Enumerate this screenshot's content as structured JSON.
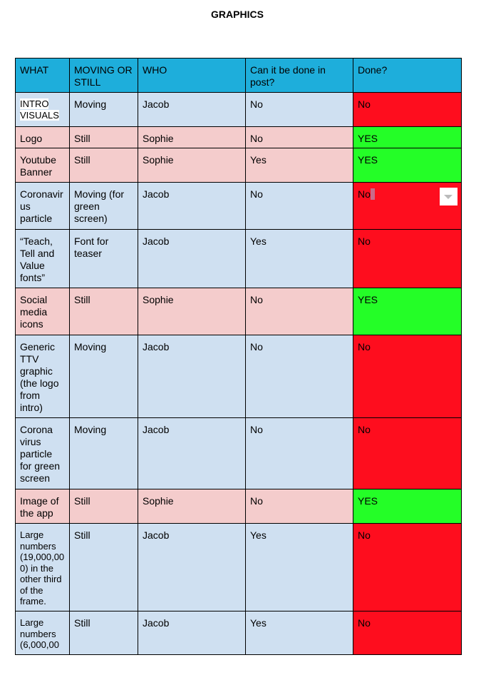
{
  "title": "GRAPHICS",
  "headers": [
    "WHAT",
    "MOVING OR STILL",
    "WHO",
    "Can it be done in post?",
    "Done?"
  ],
  "rows": [
    {
      "what": "INTRO VISUALS",
      "moving": "Moving",
      "who": "Jacob",
      "post": "No",
      "done": "No"
    },
    {
      "what": "Logo",
      "moving": "Still",
      "who": "Sophie",
      "post": "No",
      "done": "YES"
    },
    {
      "what": "Youtube Banner",
      "moving": "Still",
      "who": "Sophie",
      "post": "Yes",
      "done": "YES"
    },
    {
      "what": "Coronavirus particle",
      "moving": "Moving (for green screen)",
      "who": "Jacob",
      "post": "No",
      "done": "No"
    },
    {
      "what": "“Teach, Tell and Value fonts”",
      "moving": "Font for teaser",
      "who": "Jacob",
      "post": "Yes",
      "done": "No"
    },
    {
      "what": "Social media icons",
      "moving": "Still",
      "who": "Sophie",
      "post": "No",
      "done": "YES"
    },
    {
      "what": "Generic TTV graphic (the logo from intro)",
      "moving": "Moving",
      "who": "Jacob",
      "post": "No",
      "done": "No"
    },
    {
      "what": "Corona virus particle for green screen",
      "moving": "Moving",
      "who": "Jacob",
      "post": "No",
      "done": "No"
    },
    {
      "what": "Image of the app",
      "moving": "Still",
      "who": "Sophie",
      "post": "No",
      "done": "YES"
    },
    {
      "what": "Large numbers (19,000,000) in the other third of the frame.",
      "moving": "Still",
      "who": "Jacob",
      "post": "Yes",
      "done": "No"
    },
    {
      "what": "Large numbers (6,000,00",
      "moving": "Still",
      "who": "Jacob",
      "post": "Yes",
      "done": "No"
    }
  ],
  "colors": {
    "header": "#1eaedb",
    "blue_row": "#cfe0f1",
    "pink_row": "#f4cccc",
    "no": "#fe0d1e",
    "yes": "#24fe27"
  }
}
